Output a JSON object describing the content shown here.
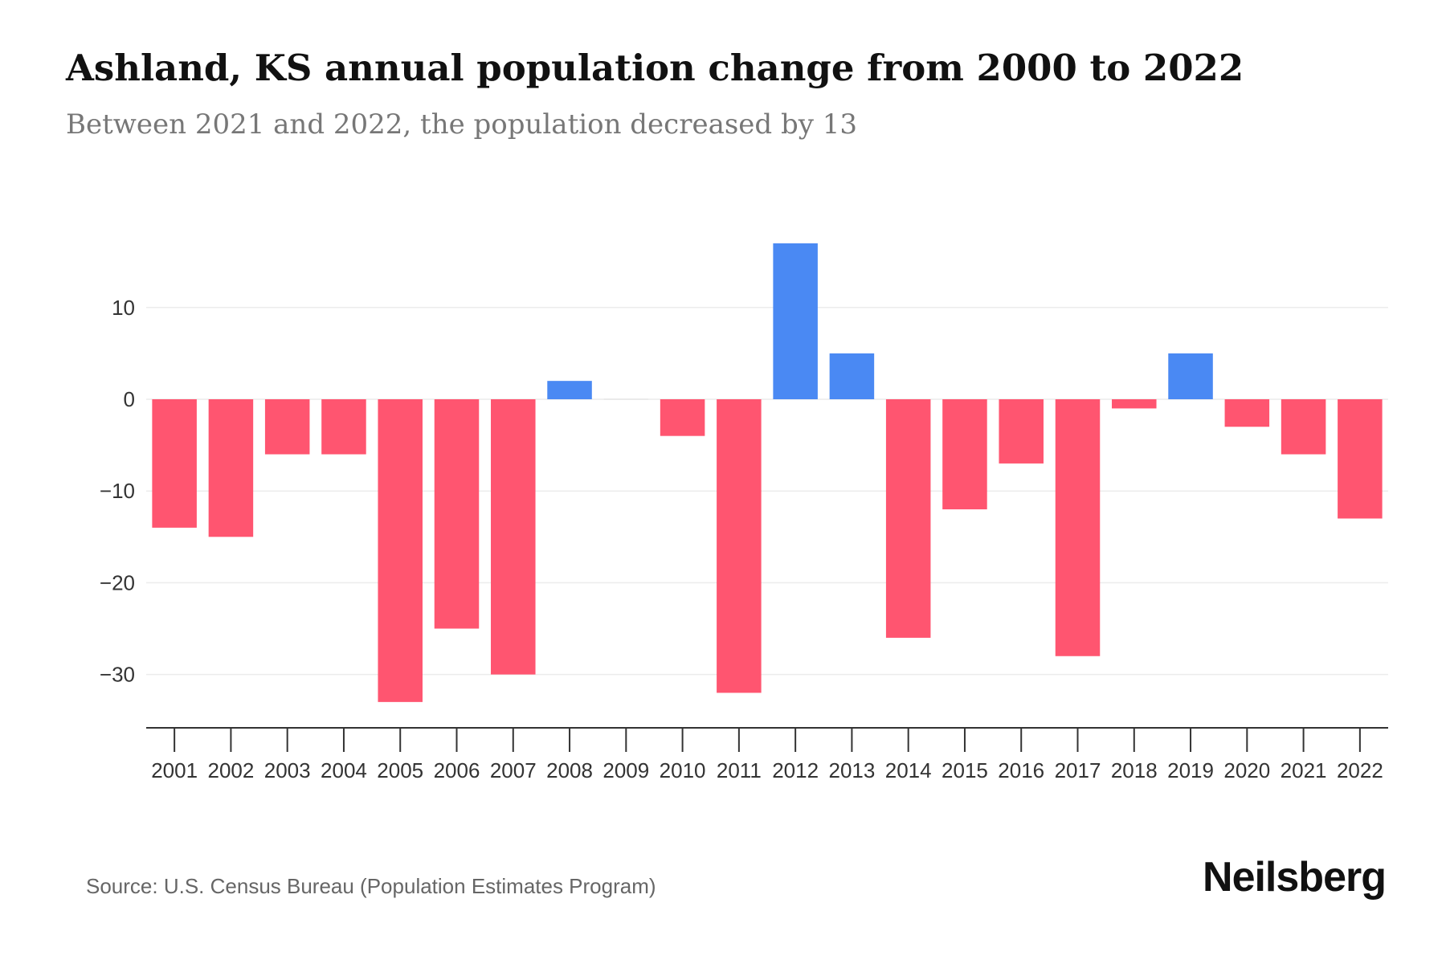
{
  "title": "Ashland, KS annual population change from 2000 to 2022",
  "subtitle": "Between 2021 and 2022, the population decreased by 13",
  "source": "Source: U.S. Census Bureau (Population Estimates Program)",
  "brand": "Neilsberg",
  "colors": {
    "increase": "#4a89f3",
    "decrease": "#ff5570",
    "grid": "#ececec",
    "axis": "#333333"
  },
  "chart_data": {
    "type": "bar",
    "title": "Ashland, KS annual population change from 2000 to 2022",
    "xlabel": "",
    "ylabel": "",
    "categories": [
      "2001",
      "2002",
      "2003",
      "2004",
      "2005",
      "2006",
      "2007",
      "2008",
      "2009",
      "2010",
      "2011",
      "2012",
      "2013",
      "2014",
      "2015",
      "2016",
      "2017",
      "2018",
      "2019",
      "2020",
      "2021",
      "2022"
    ],
    "values": [
      -14,
      -15,
      -6,
      -6,
      -33,
      -25,
      -30,
      2,
      0,
      -4,
      -32,
      17,
      5,
      -26,
      -12,
      -7,
      -28,
      -1,
      5,
      -3,
      -6,
      -13
    ],
    "yticks": [
      10,
      0,
      -10,
      -20,
      -30
    ],
    "ytick_labels": [
      "10",
      "0",
      "−10",
      "−20",
      "−30"
    ],
    "ylim": [
      -36,
      18
    ],
    "grid": true
  }
}
